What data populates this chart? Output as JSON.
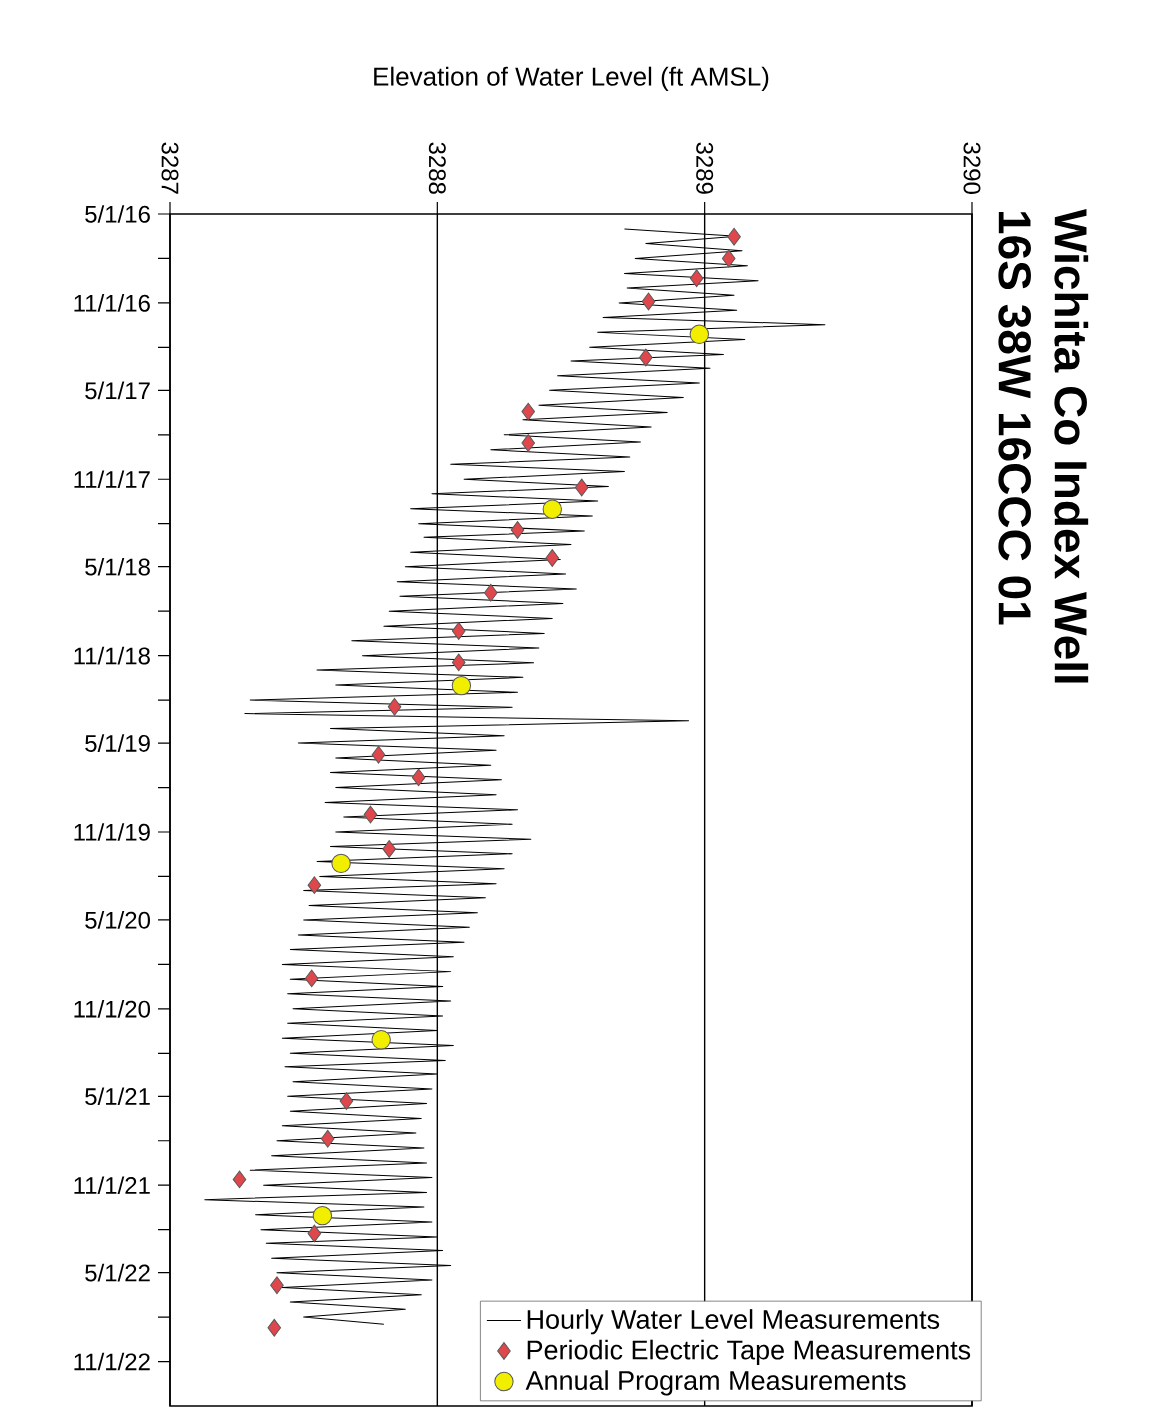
{
  "chart_data": {
    "type": "line",
    "orientation": "horizontal",
    "title": "Wichita Co Index Well",
    "subtitle": "16S 38W 16CCC 01",
    "xlabel": "Elevation of Water Level (ft AMSL)",
    "ylim": [
      "2023-02-01",
      "2016-05-01"
    ],
    "yticks": [
      {
        "value": "2016-05-01",
        "label": "5/1/16"
      },
      {
        "value": "2016-08-01",
        "label": null
      },
      {
        "value": "2016-11-01",
        "label": "11/1/16"
      },
      {
        "value": "2017-02-01",
        "label": null
      },
      {
        "value": "2017-05-01",
        "label": "5/1/17"
      },
      {
        "value": "2017-08-01",
        "label": null
      },
      {
        "value": "2017-11-01",
        "label": "11/1/17"
      },
      {
        "value": "2018-02-01",
        "label": null
      },
      {
        "value": "2018-05-01",
        "label": "5/1/18"
      },
      {
        "value": "2018-08-01",
        "label": null
      },
      {
        "value": "2018-11-01",
        "label": "11/1/18"
      },
      {
        "value": "2019-02-01",
        "label": null
      },
      {
        "value": "2019-05-01",
        "label": "5/1/19"
      },
      {
        "value": "2019-08-01",
        "label": null
      },
      {
        "value": "2019-11-01",
        "label": "11/1/19"
      },
      {
        "value": "2020-02-01",
        "label": null
      },
      {
        "value": "2020-05-01",
        "label": "5/1/20"
      },
      {
        "value": "2020-08-01",
        "label": null
      },
      {
        "value": "2020-11-01",
        "label": "11/1/20"
      },
      {
        "value": "2021-02-01",
        "label": null
      },
      {
        "value": "2021-05-01",
        "label": "5/1/21"
      },
      {
        "value": "2021-08-01",
        "label": null
      },
      {
        "value": "2021-11-01",
        "label": "11/1/21"
      },
      {
        "value": "2022-02-01",
        "label": null
      },
      {
        "value": "2022-05-01",
        "label": "5/1/22"
      },
      {
        "value": "2022-08-01",
        "label": null
      },
      {
        "value": "2022-11-01",
        "label": "11/1/22"
      }
    ],
    "xlim": [
      3287,
      3290
    ],
    "xticks": [
      3287,
      3288,
      3289,
      3290
    ],
    "grid": "x",
    "legend": "right",
    "series": [
      {
        "name": "Hourly Water Level Measurements",
        "marker": "none",
        "color": "#000000",
        "x": [
          "2016-06-01",
          "2016-06-16",
          "2016-07-01",
          "2016-07-16",
          "2016-08-01",
          "2016-08-16",
          "2016-09-01",
          "2016-09-16",
          "2016-10-01",
          "2016-10-16",
          "2016-11-01",
          "2016-11-16",
          "2016-12-01",
          "2016-12-16",
          "2017-01-01",
          "2017-01-16",
          "2017-02-01",
          "2017-02-16",
          "2017-03-01",
          "2017-03-16",
          "2017-04-01",
          "2017-04-16",
          "2017-05-01",
          "2017-05-16",
          "2017-06-01",
          "2017-06-16",
          "2017-07-01",
          "2017-07-16",
          "2017-08-01",
          "2017-08-16",
          "2017-09-01",
          "2017-09-16",
          "2017-10-01",
          "2017-10-16",
          "2017-11-01",
          "2017-11-16",
          "2017-12-01",
          "2017-12-16",
          "2018-01-01",
          "2018-01-16",
          "2018-02-01",
          "2018-02-16",
          "2018-03-01",
          "2018-03-16",
          "2018-04-01",
          "2018-04-16",
          "2018-05-01",
          "2018-05-16",
          "2018-06-01",
          "2018-06-16",
          "2018-07-01",
          "2018-07-16",
          "2018-08-01",
          "2018-08-16",
          "2018-09-01",
          "2018-09-16",
          "2018-10-01",
          "2018-10-16",
          "2018-11-01",
          "2018-11-16",
          "2018-12-01",
          "2018-12-16",
          "2019-01-01",
          "2019-01-16",
          "2019-02-01",
          "2019-02-16",
          "2019-03-01",
          "2019-03-16",
          "2019-04-01",
          "2019-04-16",
          "2019-05-01",
          "2019-05-16",
          "2019-06-01",
          "2019-06-16",
          "2019-07-01",
          "2019-07-16",
          "2019-08-01",
          "2019-08-16",
          "2019-09-01",
          "2019-09-16",
          "2019-10-01",
          "2019-10-16",
          "2019-11-01",
          "2019-11-16",
          "2019-12-01",
          "2019-12-16",
          "2020-01-01",
          "2020-01-16",
          "2020-02-01",
          "2020-02-16",
          "2020-03-01",
          "2020-03-16",
          "2020-04-01",
          "2020-04-16",
          "2020-05-01",
          "2020-05-16",
          "2020-06-01",
          "2020-06-16",
          "2020-07-01",
          "2020-07-16",
          "2020-08-01",
          "2020-08-16",
          "2020-09-01",
          "2020-09-16",
          "2020-10-01",
          "2020-10-16",
          "2020-11-01",
          "2020-11-16",
          "2020-12-01",
          "2020-12-16",
          "2021-01-01",
          "2021-01-16",
          "2021-02-01",
          "2021-02-16",
          "2021-03-01",
          "2021-03-16",
          "2021-04-01",
          "2021-04-16",
          "2021-05-01",
          "2021-05-16",
          "2021-06-01",
          "2021-06-16",
          "2021-07-01",
          "2021-07-16",
          "2021-08-01",
          "2021-08-16",
          "2021-09-01",
          "2021-09-16",
          "2021-10-01",
          "2021-10-16",
          "2021-11-01",
          "2021-11-16",
          "2021-12-01",
          "2021-12-16",
          "2022-01-01",
          "2022-01-16",
          "2022-02-01",
          "2022-02-16",
          "2022-03-01",
          "2022-03-16",
          "2022-04-01",
          "2022-04-16",
          "2022-05-01",
          "2022-05-16",
          "2022-06-01",
          "2022-06-16",
          "2022-07-01",
          "2022-07-16",
          "2022-08-01",
          "2022-08-16"
        ],
        "values": [
          3288.7,
          3289.12,
          3288.78,
          3289.14,
          3288.74,
          3289.16,
          3288.7,
          3289.2,
          3288.71,
          3289.11,
          3288.68,
          3289.12,
          3288.62,
          3289.45,
          3288.6,
          3289.15,
          3288.57,
          3289.07,
          3288.5,
          3289.02,
          3288.45,
          3288.98,
          3288.42,
          3288.92,
          3288.38,
          3288.86,
          3288.32,
          3288.8,
          3288.25,
          3288.76,
          3288.2,
          3288.72,
          3288.05,
          3288.7,
          3288.1,
          3288.64,
          3287.98,
          3288.6,
          3287.9,
          3288.58,
          3287.93,
          3288.55,
          3287.95,
          3288.5,
          3287.9,
          3288.46,
          3287.88,
          3288.48,
          3287.85,
          3288.52,
          3287.86,
          3288.47,
          3287.82,
          3288.43,
          3287.8,
          3288.4,
          3287.68,
          3288.38,
          3287.72,
          3288.36,
          3287.55,
          3288.32,
          3287.62,
          3288.3,
          3287.3,
          3288.28,
          3287.28,
          3288.94,
          3287.6,
          3288.25,
          3287.48,
          3288.22,
          3287.62,
          3288.2,
          3287.6,
          3288.24,
          3287.62,
          3288.22,
          3287.58,
          3288.3,
          3287.65,
          3288.28,
          3287.62,
          3288.35,
          3287.6,
          3288.28,
          3287.55,
          3288.25,
          3287.56,
          3288.22,
          3287.5,
          3288.18,
          3287.52,
          3288.15,
          3287.5,
          3288.12,
          3287.48,
          3288.1,
          3287.45,
          3288.06,
          3287.42,
          3288.05,
          3287.45,
          3288.02,
          3287.44,
          3288.05,
          3287.46,
          3288.02,
          3287.44,
          3288.0,
          3287.42,
          3288.06,
          3287.45,
          3288.03,
          3287.43,
          3288.0,
          3287.46,
          3287.98,
          3287.44,
          3287.96,
          3287.45,
          3287.94,
          3287.42,
          3287.92,
          3287.4,
          3287.95,
          3287.38,
          3287.96,
          3287.3,
          3287.98,
          3287.35,
          3287.96,
          3287.13,
          3287.95,
          3287.32,
          3287.98,
          3287.34,
          3288.0,
          3287.36,
          3288.02,
          3287.38,
          3288.05,
          3287.4,
          3287.98,
          3287.42,
          3287.94,
          3287.45,
          3287.88,
          3287.5,
          3287.8
        ]
      },
      {
        "name": "Periodic Electric Tape Measurements",
        "type": "scatter",
        "marker": "diamond",
        "color": "#e0474c",
        "x": [
          "2016-06-17",
          "2016-08-01",
          "2016-09-11",
          "2016-10-29",
          "2017-02-22",
          "2017-06-14",
          "2017-08-18",
          "2017-11-18",
          "2018-02-14",
          "2018-04-13",
          "2018-06-24",
          "2018-09-11",
          "2018-11-15",
          "2019-02-15",
          "2019-05-25",
          "2019-07-11",
          "2019-09-26",
          "2019-12-06",
          "2020-02-19",
          "2020-08-30",
          "2021-05-11",
          "2021-07-28",
          "2021-10-20",
          "2022-02-09",
          "2022-05-27",
          "2022-08-23"
        ],
        "values": [
          3289.11,
          3289.09,
          3288.97,
          3288.79,
          3288.78,
          3288.34,
          3288.34,
          3288.54,
          3288.3,
          3288.43,
          3288.2,
          3288.08,
          3288.08,
          3287.84,
          3287.78,
          3287.93,
          3287.75,
          3287.82,
          3287.54,
          3287.53,
          3287.66,
          3287.59,
          3287.26,
          3287.54,
          3287.4,
          3287.39
        ]
      },
      {
        "name": "Annual Program Measurements",
        "type": "scatter",
        "marker": "circle",
        "color": "#f2ee00",
        "x": [
          "2017-01-05",
          "2018-01-02",
          "2019-01-02",
          "2020-01-05",
          "2021-01-04",
          "2022-01-03"
        ],
        "values": [
          3288.98,
          3288.43,
          3288.09,
          3287.64,
          3287.79,
          3287.57
        ]
      }
    ]
  }
}
